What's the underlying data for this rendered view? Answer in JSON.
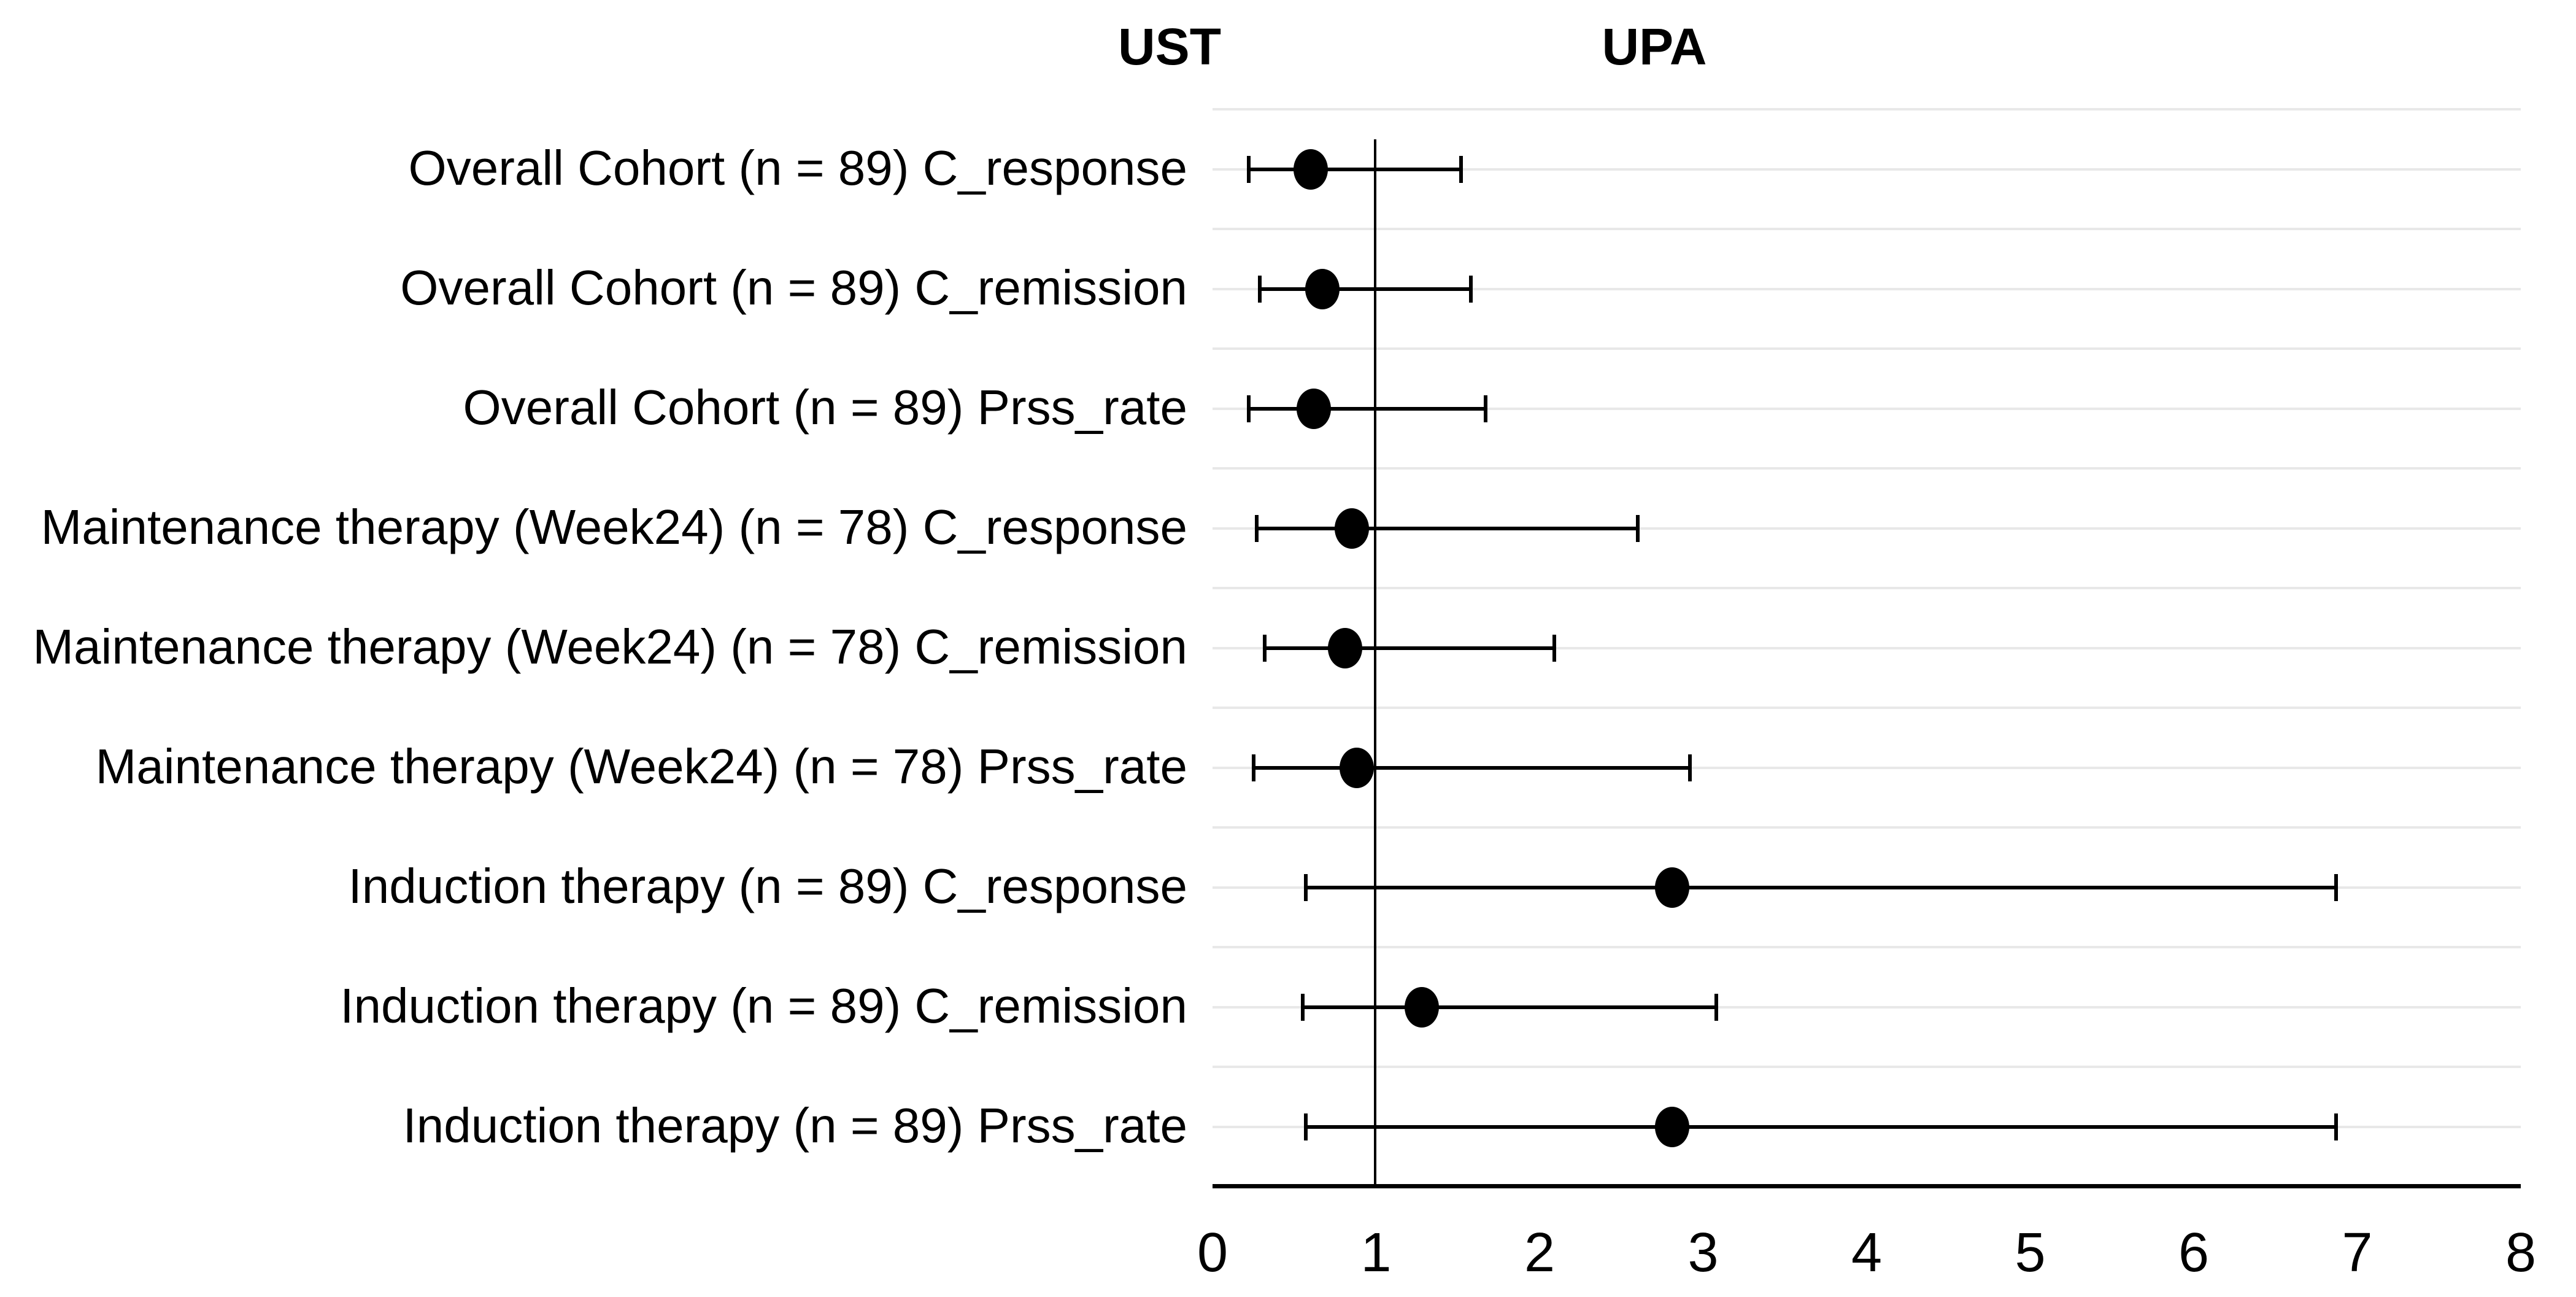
{
  "chart_data": {
    "type": "scatter",
    "subtype": "forest-plot",
    "title": "",
    "group_headers": {
      "left": "UST",
      "right": "UPA"
    },
    "rows": [
      {
        "label": "Overall Cohort (n = 89) C_response",
        "estimate": 0.6,
        "ci_low": 0.22,
        "ci_high": 1.52
      },
      {
        "label": "Overall Cohort (n = 89) C_remission",
        "estimate": 0.67,
        "ci_low": 0.29,
        "ci_high": 1.58
      },
      {
        "label": "Overall Cohort (n = 89) Prss_rate",
        "estimate": 0.62,
        "ci_low": 0.22,
        "ci_high": 1.67
      },
      {
        "label": "Maintenance therapy (Week24) (n = 78) C_response",
        "estimate": 0.85,
        "ci_low": 0.27,
        "ci_high": 2.6
      },
      {
        "label": "Maintenance therapy (Week24) (n = 78) C_remission",
        "estimate": 0.81,
        "ci_low": 0.32,
        "ci_high": 2.09
      },
      {
        "label": "Maintenance therapy (Week24) (n = 78) Prss_rate",
        "estimate": 0.88,
        "ci_low": 0.25,
        "ci_high": 2.92
      },
      {
        "label": "Induction therapy (n = 89) C_response",
        "estimate": 2.81,
        "ci_low": 0.57,
        "ci_high": 6.87
      },
      {
        "label": "Induction therapy (n = 89) C_remission",
        "estimate": 1.28,
        "ci_low": 0.55,
        "ci_high": 3.08
      },
      {
        "label": "Induction therapy (n = 89) Prss_rate",
        "estimate": 2.81,
        "ci_low": 0.57,
        "ci_high": 6.87
      }
    ],
    "xlabel": "",
    "ylabel": "",
    "xlim": [
      0,
      8
    ],
    "x_ticks": [
      "0",
      "1",
      "2",
      "3",
      "4",
      "5",
      "6",
      "7",
      "8"
    ],
    "reference_line": 1,
    "grid": "horizontal",
    "legend_position": "none",
    "colors": {
      "marker": "#000000",
      "ci_line": "#000000",
      "reference_line": "#000000",
      "axis_line": "#000000",
      "gridline": "#e8e8e8",
      "text": "#000000",
      "background": "#ffffff"
    }
  }
}
